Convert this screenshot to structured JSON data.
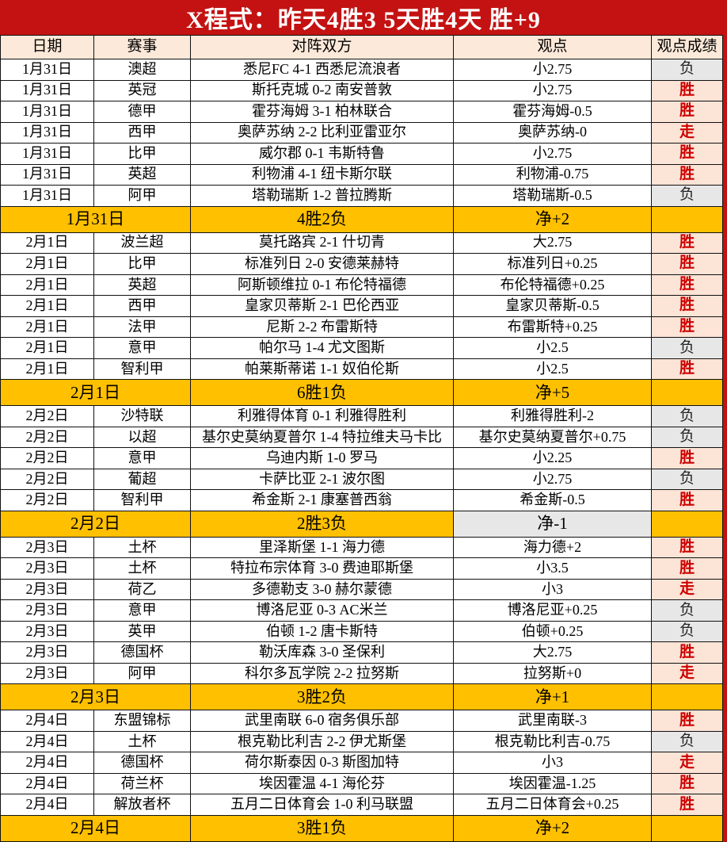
{
  "title": "X程式：昨天4胜3 5天胜4天 胜+9",
  "colors": {
    "red": "#c41212",
    "yellow": "#ffc000",
    "peach": "#fde9d9",
    "winbg": "#fce4d6",
    "lossbg": "#e8e7e7",
    "wintext": "#cc0000"
  },
  "columns": [
    "日期",
    "赛事",
    "对阵双方",
    "观点",
    "观点成绩"
  ],
  "result_legend": {
    "win": "胜",
    "loss": "负",
    "push": "走"
  },
  "rows": [
    {
      "type": "match",
      "date": "1月31日",
      "league": "澳超",
      "match": "悉尼FC 4-1 西悉尼流浪者",
      "opinion": "小2.75",
      "result": "负",
      "result_type": "loss"
    },
    {
      "type": "match",
      "date": "1月31日",
      "league": "英冠",
      "match": "斯托克城 0-2 南安普敦",
      "opinion": "小2.75",
      "result": "胜",
      "result_type": "win"
    },
    {
      "type": "match",
      "date": "1月31日",
      "league": "德甲",
      "match": "霍芬海姆 3-1 柏林联合",
      "opinion": "霍芬海姆-0.5",
      "result": "胜",
      "result_type": "win"
    },
    {
      "type": "match",
      "date": "1月31日",
      "league": "西甲",
      "match": "奥萨苏纳 2-2 比利亚雷亚尔",
      "opinion": "奥萨苏纳-0",
      "result": "走",
      "result_type": "push"
    },
    {
      "type": "match",
      "date": "1月31日",
      "league": "比甲",
      "match": "威尔郡 0-1 韦斯特鲁",
      "opinion": "小2.75",
      "result": "胜",
      "result_type": "win"
    },
    {
      "type": "match",
      "date": "1月31日",
      "league": "英超",
      "match": "利物浦 4-1 纽卡斯尔联",
      "opinion": "利物浦-0.75",
      "result": "胜",
      "result_type": "win"
    },
    {
      "type": "match",
      "date": "1月31日",
      "league": "阿甲",
      "match": "塔勒瑞斯 1-2 普拉腾斯",
      "opinion": "塔勒瑞斯-0.5",
      "result": "负",
      "result_type": "loss"
    },
    {
      "type": "summary",
      "date": "1月31日",
      "record": "4胜2负",
      "net": "净+2",
      "net_negative": false
    },
    {
      "type": "match",
      "date": "2月1日",
      "league": "波兰超",
      "match": "莫托路宾 2-1 什切青",
      "opinion": "大2.75",
      "result": "胜",
      "result_type": "win"
    },
    {
      "type": "match",
      "date": "2月1日",
      "league": "比甲",
      "match": "标准列日 2-0 安德莱赫特",
      "opinion": "标准列日+0.25",
      "result": "胜",
      "result_type": "win"
    },
    {
      "type": "match",
      "date": "2月1日",
      "league": "英超",
      "match": "阿斯顿维拉 0-1 布伦特福德",
      "opinion": "布伦特福德+0.25",
      "result": "胜",
      "result_type": "win"
    },
    {
      "type": "match",
      "date": "2月1日",
      "league": "西甲",
      "match": "皇家贝蒂斯 2-1 巴伦西亚",
      "opinion": "皇家贝蒂斯-0.5",
      "result": "胜",
      "result_type": "win"
    },
    {
      "type": "match",
      "date": "2月1日",
      "league": "法甲",
      "match": "尼斯 2-2 布雷斯特",
      "opinion": "布雷斯特+0.25",
      "result": "胜",
      "result_type": "win"
    },
    {
      "type": "match",
      "date": "2月1日",
      "league": "意甲",
      "match": "帕尔马 1-4 尤文图斯",
      "opinion": "小2.5",
      "result": "负",
      "result_type": "loss"
    },
    {
      "type": "match",
      "date": "2月1日",
      "league": "智利甲",
      "match": "帕莱斯蒂诺 1-1 奴伯伦斯",
      "opinion": "小2.5",
      "result": "胜",
      "result_type": "win"
    },
    {
      "type": "summary",
      "date": "2月1日",
      "record": "6胜1负",
      "net": "净+5",
      "net_negative": false
    },
    {
      "type": "match",
      "date": "2月2日",
      "league": "沙特联",
      "match": "利雅得体育 0-1 利雅得胜利",
      "opinion": "利雅得胜利-2",
      "result": "负",
      "result_type": "loss"
    },
    {
      "type": "match",
      "date": "2月2日",
      "league": "以超",
      "match": "基尔史莫纳夏普尔 1-4 特拉维夫马卡比",
      "opinion": "基尔史莫纳夏普尔+0.75",
      "result": "负",
      "result_type": "loss"
    },
    {
      "type": "match",
      "date": "2月2日",
      "league": "意甲",
      "match": "乌迪内斯 1-0 罗马",
      "opinion": "小2.25",
      "result": "胜",
      "result_type": "win"
    },
    {
      "type": "match",
      "date": "2月2日",
      "league": "葡超",
      "match": "卡萨比亚 2-1 波尔图",
      "opinion": "小2.75",
      "result": "负",
      "result_type": "loss"
    },
    {
      "type": "match",
      "date": "2月2日",
      "league": "智利甲",
      "match": "希金斯 2-1 康塞普西翁",
      "opinion": "希金斯-0.5",
      "result": "胜",
      "result_type": "win"
    },
    {
      "type": "summary",
      "date": "2月2日",
      "record": "2胜3负",
      "net": "净-1",
      "net_negative": true
    },
    {
      "type": "match",
      "date": "2月3日",
      "league": "土杯",
      "match": "里泽斯堡 1-1 海力德",
      "opinion": "海力德+2",
      "result": "胜",
      "result_type": "win"
    },
    {
      "type": "match",
      "date": "2月3日",
      "league": "土杯",
      "match": "特拉布宗体育 3-0 费迪耶斯堡",
      "opinion": "小3.5",
      "result": "胜",
      "result_type": "win"
    },
    {
      "type": "match",
      "date": "2月3日",
      "league": "荷乙",
      "match": "多德勒支 3-0 赫尔蒙德",
      "opinion": "小3",
      "result": "走",
      "result_type": "push"
    },
    {
      "type": "match",
      "date": "2月3日",
      "league": "意甲",
      "match": "博洛尼亚 0-3 AC米兰",
      "opinion": "博洛尼亚+0.25",
      "result": "负",
      "result_type": "loss"
    },
    {
      "type": "match",
      "date": "2月3日",
      "league": "英甲",
      "match": "伯顿 1-2 唐卡斯特",
      "opinion": "伯顿+0.25",
      "result": "负",
      "result_type": "loss"
    },
    {
      "type": "match",
      "date": "2月3日",
      "league": "德国杯",
      "match": "勒沃库森 3-0 圣保利",
      "opinion": "大2.75",
      "result": "胜",
      "result_type": "win"
    },
    {
      "type": "match",
      "date": "2月3日",
      "league": "阿甲",
      "match": "科尔多瓦学院 2-2 拉努斯",
      "opinion": "拉努斯+0",
      "result": "走",
      "result_type": "push"
    },
    {
      "type": "summary",
      "date": "2月3日",
      "record": "3胜2负",
      "net": "净+1",
      "net_negative": false
    },
    {
      "type": "match",
      "date": "2月4日",
      "league": "东盟锦标",
      "match": "武里南联 6-0 宿务俱乐部",
      "opinion": "武里南联-3",
      "result": "胜",
      "result_type": "win"
    },
    {
      "type": "match",
      "date": "2月4日",
      "league": "土杯",
      "match": "根克勒比利吉 2-2 伊尤斯堡",
      "opinion": "根克勒比利吉-0.75",
      "result": "负",
      "result_type": "loss"
    },
    {
      "type": "match",
      "date": "2月4日",
      "league": "德国杯",
      "match": "荷尔斯泰因 0-3 斯图加特",
      "opinion": "小3",
      "result": "走",
      "result_type": "push"
    },
    {
      "type": "match",
      "date": "2月4日",
      "league": "荷兰杯",
      "match": "埃因霍温 4-1 海伦芬",
      "opinion": "埃因霍温-1.25",
      "result": "胜",
      "result_type": "win"
    },
    {
      "type": "match",
      "date": "2月4日",
      "league": "解放者杯",
      "match": "五月二日体育会 1-0 利马联盟",
      "opinion": "五月二日体育会+0.25",
      "result": "胜",
      "result_type": "win"
    },
    {
      "type": "summary",
      "date": "2月4日",
      "record": "3胜1负",
      "net": "净+2",
      "net_negative": false
    }
  ]
}
